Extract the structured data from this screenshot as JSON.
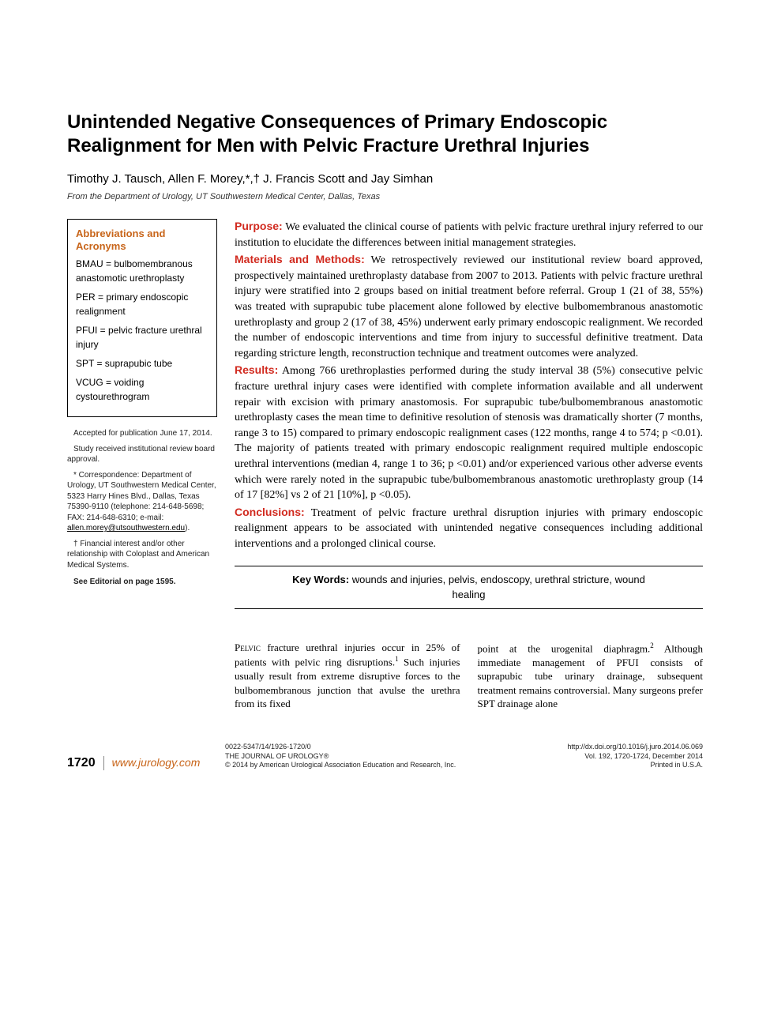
{
  "title": "Unintended Negative Consequences of Primary Endoscopic Realignment for Men with Pelvic Fracture Urethral Injuries",
  "authors": "Timothy J. Tausch, Allen F. Morey,*,† J. Francis Scott and Jay Simhan",
  "affiliation": "From the Department of Urology, UT Southwestern Medical Center, Dallas, Texas",
  "abbrev": {
    "heading": "Abbreviations and Acronyms",
    "items": [
      "BMAU = bulbomembranous anastomotic urethroplasty",
      "PER = primary endoscopic realignment",
      "PFUI = pelvic fracture urethral injury",
      "SPT = suprapubic tube",
      "VCUG = voiding cystourethrogram"
    ]
  },
  "notes": {
    "accepted": "Accepted for publication June 17, 2014.",
    "irb": "Study received institutional review board approval.",
    "correspondence": "* Correspondence: Department of Urology, UT Southwestern Medical Center, 5323 Harry Hines Blvd., Dallas, Texas 75390-9110 (telephone: 214-648-5698; FAX: 214-648-6310; e-mail: ",
    "email": "allen.morey@utsouthwestern.edu",
    "email_close": ").",
    "coi": "† Financial interest and/or other relationship with Coloplast and American Medical Systems.",
    "editorial": "See Editorial on page 1595."
  },
  "abstract": {
    "purpose": {
      "label": "Purpose:",
      "text": " We evaluated the clinical course of patients with pelvic fracture urethral injury referred to our institution to elucidate the differences between initial management strategies."
    },
    "methods": {
      "label": "Materials and Methods:",
      "text": " We retrospectively reviewed our institutional review board approved, prospectively maintained urethroplasty database from 2007 to 2013. Patients with pelvic fracture urethral injury were stratified into 2 groups based on initial treatment before referral. Group 1 (21 of 38, 55%) was treated with suprapubic tube placement alone followed by elective bulbomembranous anastomotic urethroplasty and group 2 (17 of 38, 45%) underwent early primary endoscopic realignment. We recorded the number of endoscopic interventions and time from injury to successful definitive treatment. Data regarding stricture length, reconstruction technique and treatment outcomes were analyzed."
    },
    "results": {
      "label": "Results:",
      "text": " Among 766 urethroplasties performed during the study interval 38 (5%) consecutive pelvic fracture urethral injury cases were identified with complete information available and all underwent repair with excision with primary anastomosis. For suprapubic tube/bulbomembranous anastomotic urethroplasty cases the mean time to definitive resolution of stenosis was dramatically shorter (7 months, range 3 to 15) compared to primary endoscopic realignment cases (122 months, range 4 to 574; p <0.01). The majority of patients treated with primary endoscopic realignment required multiple endoscopic urethral interventions (median 4, range 1 to 36; p <0.01) and/or experienced various other adverse events which were rarely noted in the suprapubic tube/bulbomembranous anastomotic urethroplasty group (14 of 17 [82%] vs 2 of 21 [10%], p <0.05)."
    },
    "conclusions": {
      "label": "Conclusions:",
      "text": " Treatment of pelvic fracture urethral disruption injuries with primary endoscopic realignment appears to be associated with unintended negative consequences including additional interventions and a prolonged clinical course."
    }
  },
  "keywords": {
    "label": "Key Words:",
    "text": " wounds and injuries, pelvis, endoscopy, urethral stricture, wound healing"
  },
  "body": {
    "col1_lead": "Pelvic",
    "col1_rest": " fracture urethral injuries occur in 25% of patients with pelvic ring disruptions.",
    "col1_ref1": "1",
    "col1_tail": " Such injuries usually result from extreme disruptive forces to the bulbomembranous junction that avulse the urethra from its fixed",
    "col2_start": "point at the urogenital diaphragm.",
    "col2_ref2": "2",
    "col2_rest": " Although immediate management of PFUI consists of suprapubic tube urinary drainage, subsequent treatment remains controversial. Many surgeons prefer SPT drainage alone"
  },
  "footer": {
    "page": "1720",
    "url": "www.jurology.com",
    "issn": "0022-5347/14/1926-1720/0",
    "journal": "THE JOURNAL OF UROLOGY",
    "reg": "®",
    "copyright": "© 2014 by American Urological Association Education and Research, Inc.",
    "doi": "http://dx.doi.org/10.1016/j.juro.2014.06.069",
    "volume": "Vol. 192, 1720-1724, December 2014",
    "printed": "Printed in U.S.A."
  }
}
